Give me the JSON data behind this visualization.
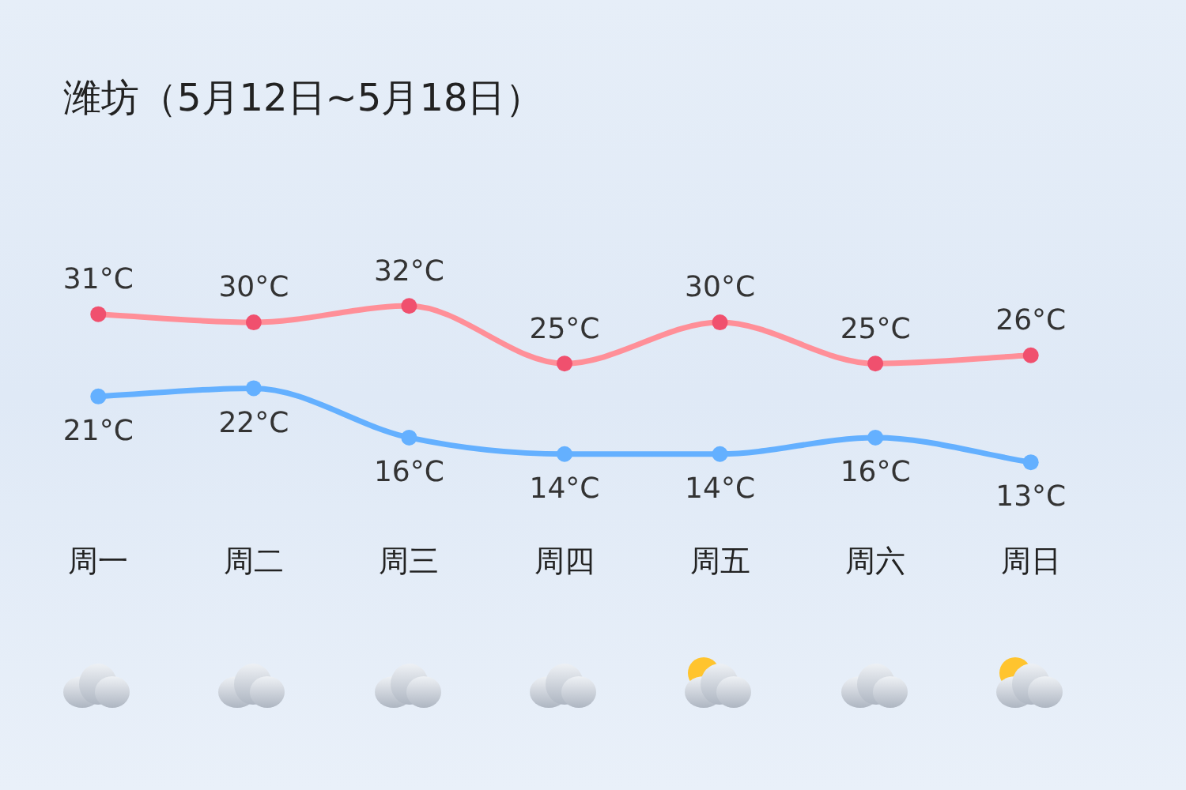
{
  "chart_data": {
    "type": "line",
    "title": "潍坊（5月12日~5月18日）",
    "categories": [
      "周一",
      "周二",
      "周三",
      "周四",
      "周五",
      "周六",
      "周日"
    ],
    "series": [
      {
        "color": "#ff8f98",
        "values": [
          31,
          30,
          32,
          25,
          30,
          25,
          26
        ],
        "value_labels": [
          "31°C",
          "30°C",
          "32°C",
          "25°C",
          "30°C",
          "25°C",
          "26°C"
        ]
      },
      {
        "color": "#64b0ff",
        "values": [
          21,
          22,
          16,
          14,
          14,
          16,
          13
        ],
        "value_labels": [
          "21°C",
          "22°C",
          "16°C",
          "14°C",
          "14°C",
          "16°C",
          "13°C"
        ]
      }
    ],
    "marker": "circle",
    "grid": false,
    "legend": false,
    "tick_labels": "x"
  }
}
